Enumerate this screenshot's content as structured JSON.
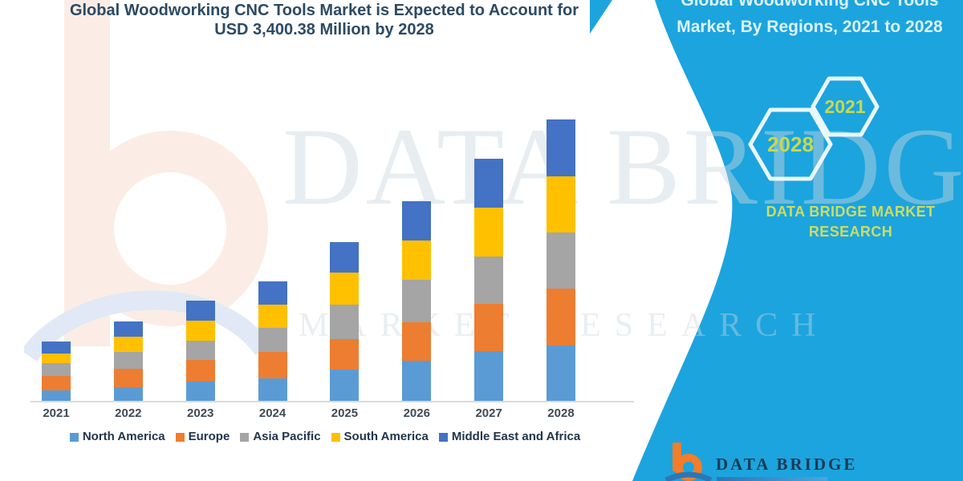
{
  "title": {
    "line1": "Global Woodworking CNC Tools Market is Expected to Account for",
    "line2": "USD 3,400.38 Million by 2028"
  },
  "banner": {
    "heading_line1": "Global Woodworking CNC Tools",
    "heading_line2": "Market, By Regions, 2021 to 2028",
    "hexagons": [
      {
        "label": "2028"
      },
      {
        "label": "2021"
      }
    ],
    "brand": {
      "line1": "DATA BRIDGE MARKET",
      "line2": "RESEARCH"
    }
  },
  "watermark": {
    "text_large": "DATA BRIDGE",
    "text_spaced": "MARKET RESEARCH"
  },
  "footer_logo": {
    "brand": "DATA BRIDGE"
  },
  "colors": {
    "band_cyan": "#1CA4DE",
    "title_text": "#2C4A63",
    "banner_heading_text": "#DCF3FB",
    "hexagon_year_text": "#C8D84F",
    "banner_brand_text": "#CEDC60",
    "axis_line": "#DBDBDB",
    "legend_text": "#22354A",
    "footer_brand_text": "#1C3A55",
    "logo_orange": "#F07E2A",
    "logo_blue": "#2E75B6"
  },
  "chart_data": {
    "type": "bar",
    "stacked": true,
    "title": "Global Woodworking CNC Tools Market is Expected to Account for USD 3,400.38 Million by 2028",
    "categories": [
      "2021",
      "2022",
      "2023",
      "2024",
      "2025",
      "2026",
      "2027",
      "2028"
    ],
    "series": [
      {
        "name": "North America",
        "color": "#5B9BD5",
        "values": [
          13,
          17,
          24,
          28,
          39,
          50,
          62,
          69
        ]
      },
      {
        "name": "Europe",
        "color": "#ED7D31",
        "values": [
          18,
          23,
          27,
          33,
          38,
          48,
          59,
          71
        ]
      },
      {
        "name": "Asia Pacific",
        "color": "#A5A5A5",
        "values": [
          16,
          21,
          24,
          30,
          43,
          53,
          59,
          70
        ]
      },
      {
        "name": "South America",
        "color": "#FFC000",
        "values": [
          12,
          19,
          25,
          29,
          40,
          49,
          61,
          70
        ]
      },
      {
        "name": "Middle East and Africa",
        "color": "#4472C4",
        "values": [
          15,
          19,
          25,
          29,
          38,
          49,
          61,
          71
        ]
      }
    ],
    "totals_relative": [
      74,
      99,
      125,
      149,
      198,
      249,
      302,
      351
    ],
    "value_scale_note": "relative stacked heights; no y-axis shown; 2028 total corresponds to USD 3,400.38 Million per title",
    "xlabel": "",
    "ylabel": "",
    "y_axis_visible": false,
    "grid": false,
    "legend_position": "bottom"
  }
}
